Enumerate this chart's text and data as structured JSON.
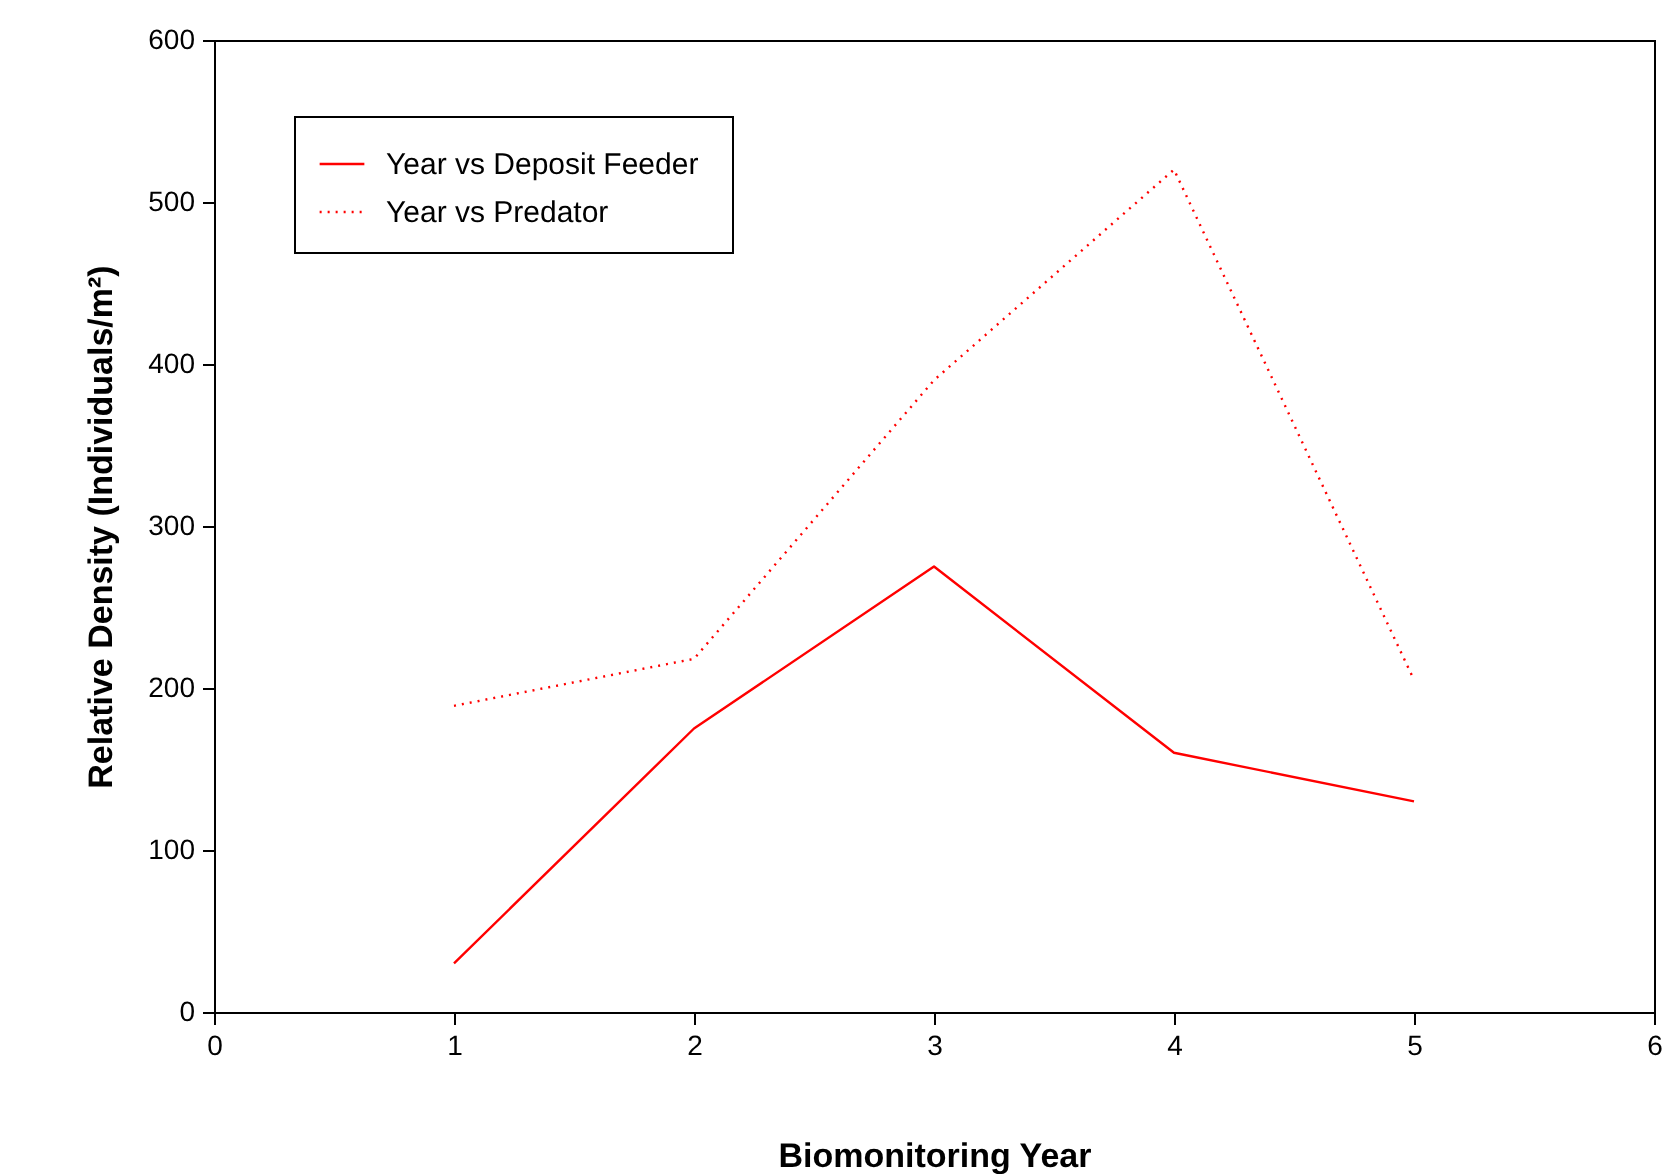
{
  "chart_data": {
    "type": "line",
    "xlabel": "Biomonitoring Year",
    "ylabel": "Relative Density (Individuals/m²)",
    "x": [
      1,
      2,
      3,
      4,
      5
    ],
    "series": [
      {
        "name": "Year  vs Deposit Feeder",
        "color": "#ff0000",
        "line_style": "solid",
        "values": [
          30,
          175,
          275,
          160,
          130
        ]
      },
      {
        "name": "Year  vs Predator",
        "color": "#ff0000",
        "line_style": "dotted",
        "values": [
          189,
          218,
          390,
          520,
          205
        ]
      }
    ],
    "xlim": [
      0,
      6
    ],
    "xticks": [
      0,
      1,
      2,
      3,
      4,
      5,
      6
    ],
    "ylim": [
      0,
      600
    ],
    "yticks": [
      0,
      100,
      200,
      300,
      400,
      500,
      600
    ],
    "legend": "top left",
    "grid": false
  }
}
